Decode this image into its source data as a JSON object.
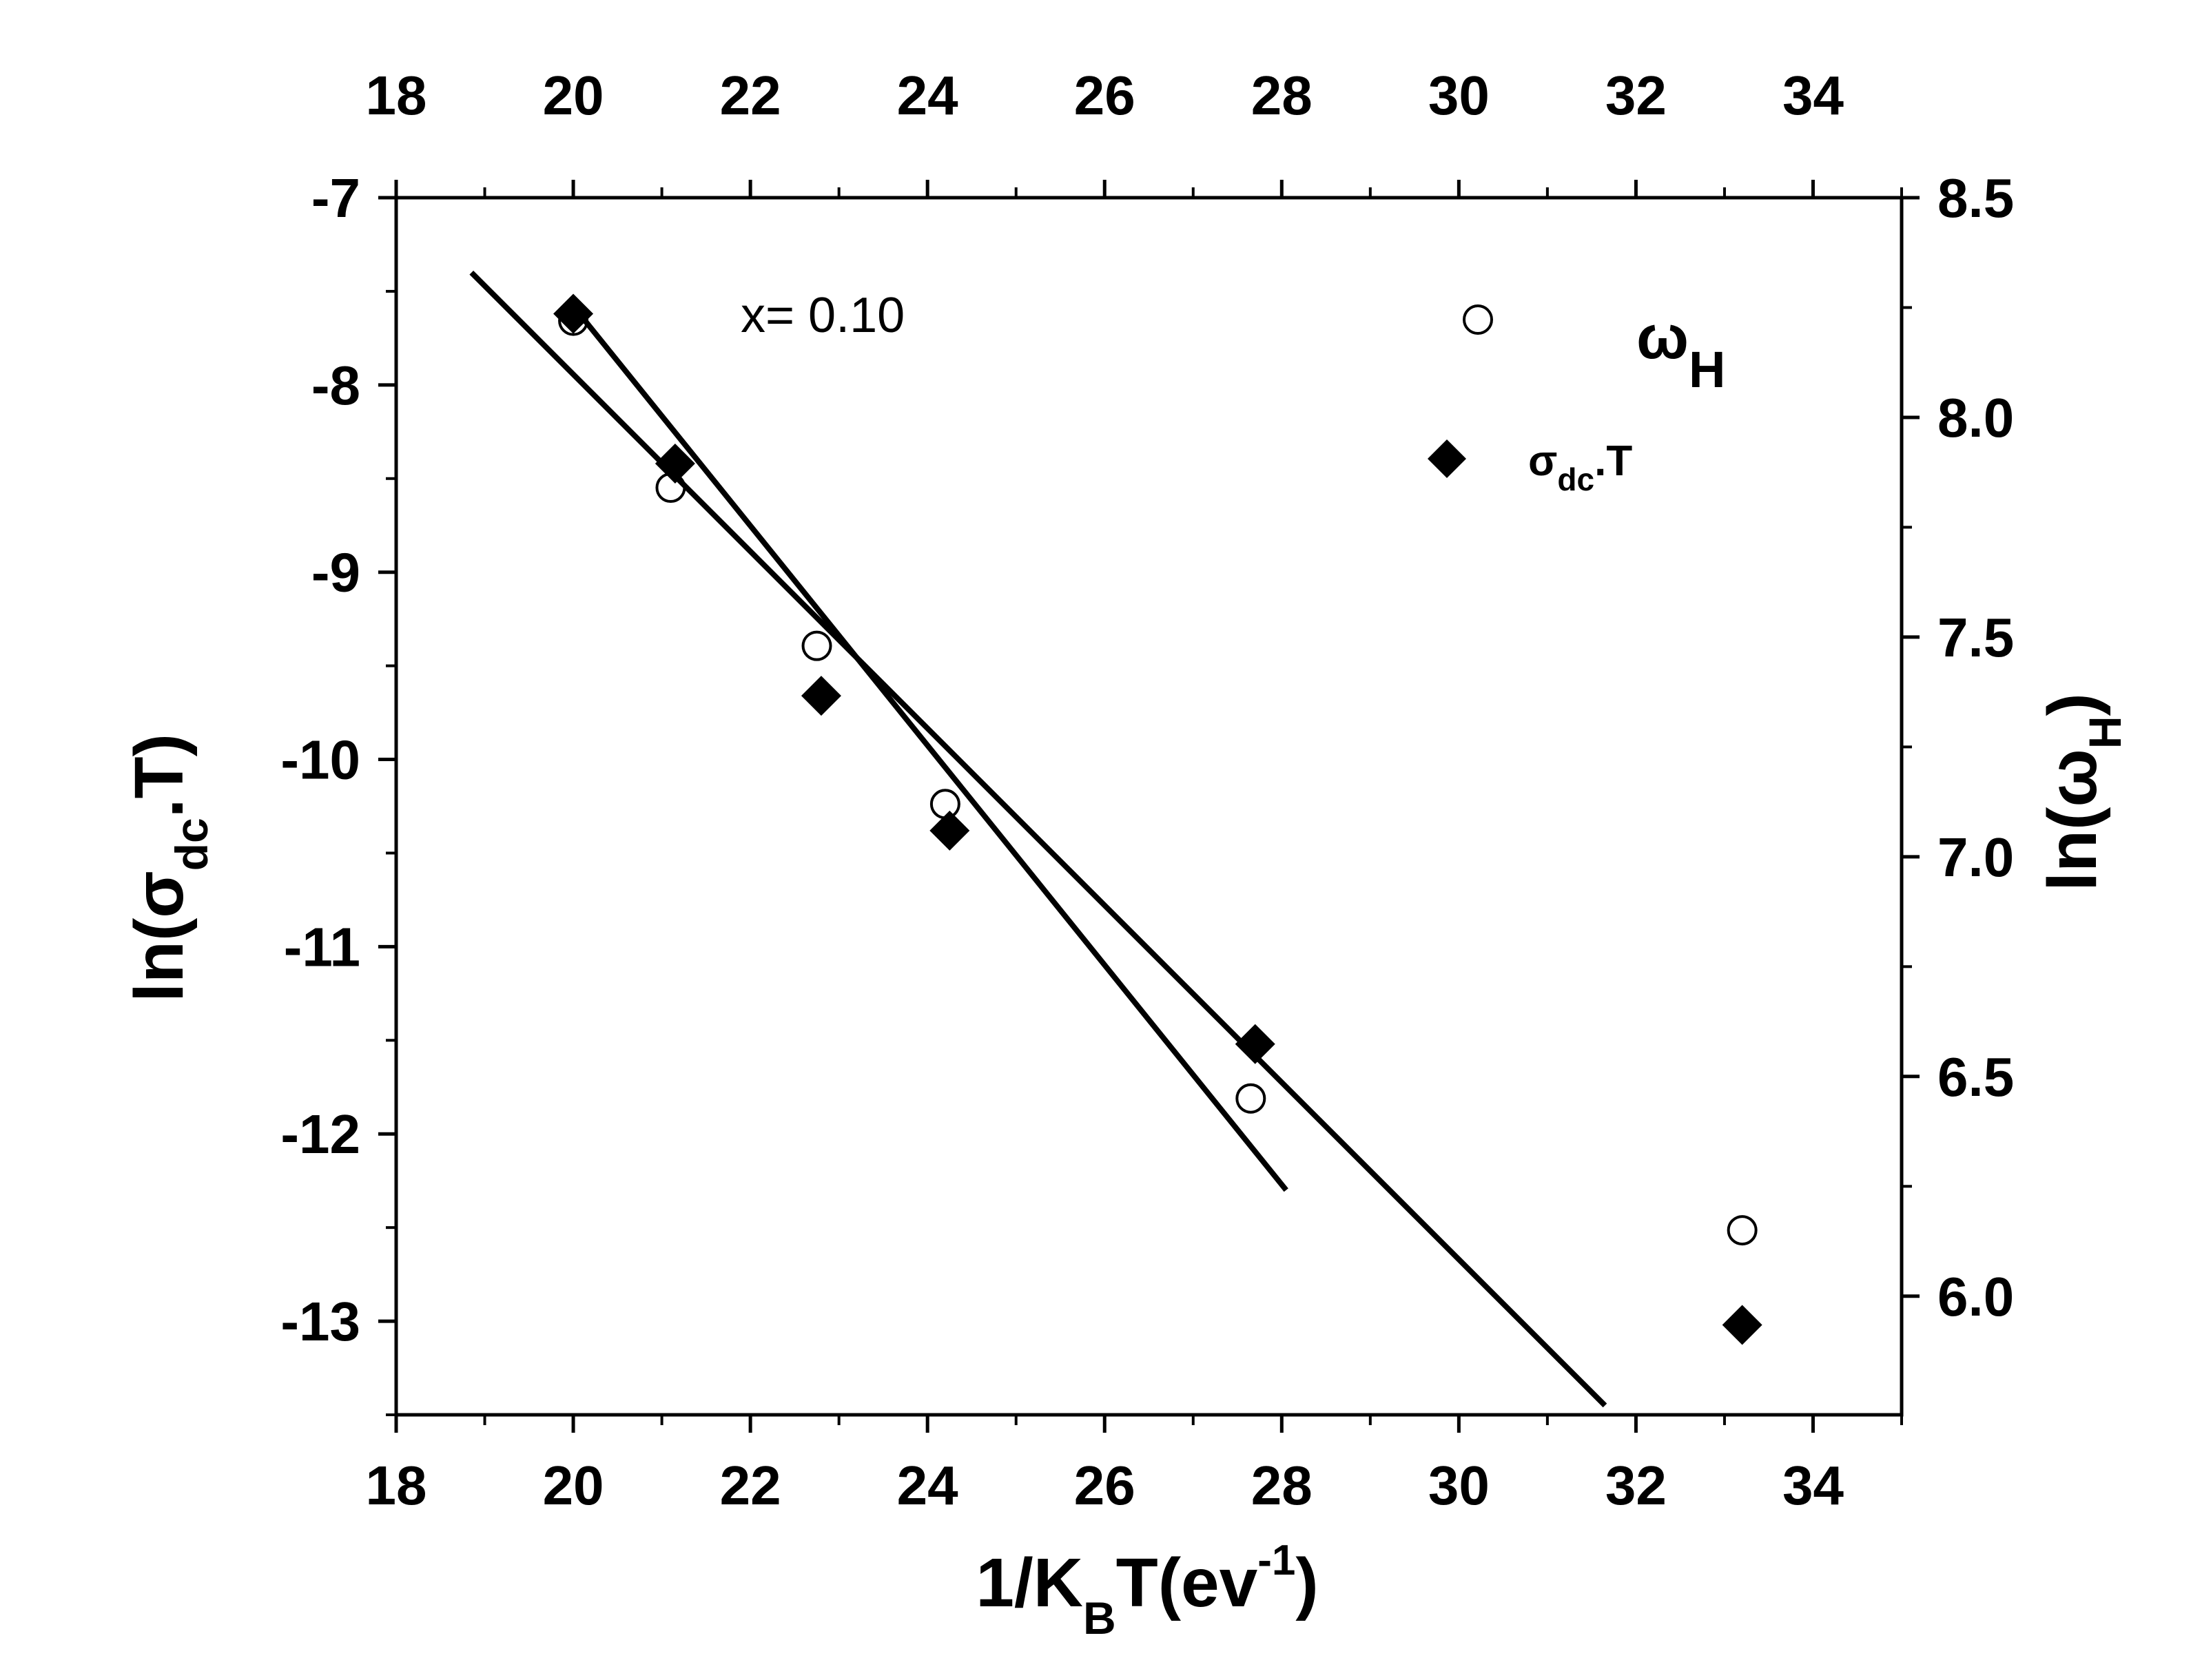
{
  "chart_data": {
    "type": "scatter",
    "annotation": "x= 0.10",
    "x_axis": {
      "label_main": "1/K",
      "label_sub": "B",
      "label_mid": "T(ev",
      "label_sup": "-1",
      "label_end": ")",
      "range": [
        18,
        35
      ],
      "ticks": [
        18,
        20,
        22,
        24,
        26,
        28,
        30,
        32,
        34
      ],
      "tick_labels": [
        "18",
        "20",
        "22",
        "24",
        "26",
        "28",
        "30",
        "32",
        "34"
      ]
    },
    "top_axis": {
      "range": [
        18,
        35
      ],
      "ticks": [
        18,
        20,
        22,
        24,
        26,
        28,
        30,
        32,
        34
      ],
      "tick_labels": [
        "18",
        "20",
        "22",
        "24",
        "26",
        "28",
        "30",
        "32",
        "34"
      ]
    },
    "y_left": {
      "label_main": "ln(σ",
      "label_sub": "dc",
      "label_end": ".T)",
      "range": [
        -13.5,
        -7
      ],
      "ticks": [
        -7,
        -8,
        -9,
        -10,
        -11,
        -12,
        -13
      ],
      "tick_labels": [
        "-7",
        "-8",
        "-9",
        "-10",
        "-11",
        "-12",
        "-13"
      ]
    },
    "y_right": {
      "label_main": "ln(ω",
      "label_sub": "H",
      "label_end": ")",
      "range": [
        5.73,
        8.5
      ],
      "ticks": [
        8.5,
        8.0,
        7.5,
        7.0,
        6.5,
        6.0
      ],
      "tick_labels": [
        "8.5",
        "8.0",
        "7.5",
        "7.0",
        "6.5",
        "6.0"
      ]
    },
    "series": [
      {
        "name": "σdc.T",
        "legend_main": "σ",
        "legend_sub": "dc",
        "legend_end": ".T",
        "marker": "filled-diamond",
        "axis": "left",
        "x": [
          20.0,
          21.15,
          22.8,
          24.25,
          27.7,
          33.2
        ],
        "y": [
          -7.62,
          -8.42,
          -9.66,
          -10.38,
          -11.52,
          -13.02
        ]
      },
      {
        "name": "ωH",
        "legend_main": "ω",
        "legend_sub": "H",
        "marker": "open-circle",
        "axis": "right",
        "x": [
          20.0,
          21.1,
          22.75,
          24.2,
          27.65,
          33.2
        ],
        "y": [
          8.22,
          7.84,
          7.48,
          7.12,
          6.45,
          6.15
        ]
      }
    ],
    "fit_lines": [
      {
        "name": "fit-sigma",
        "x": [
          18.85,
          31.65
        ],
        "y": [
          -7.4,
          -13.45
        ]
      },
      {
        "name": "fit-omega",
        "x": [
          19.95,
          28.05
        ],
        "y": [
          -7.55,
          -12.3
        ]
      }
    ]
  }
}
